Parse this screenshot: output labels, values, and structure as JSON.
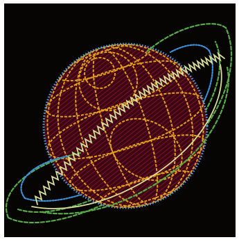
{
  "artwork": {
    "subject": "planet-with-rings",
    "palette": {
      "background": "#070504",
      "frame": "#ffffff",
      "sphere_fill": "#3a0712",
      "sphere_hatch": "#8e1430",
      "sphere_outline": "#4fa8e0",
      "grid_lines": "#f2b021",
      "ring_green": "#5aa94a",
      "ring_blue": "#3f8fd6",
      "ring_cream": "#d7dd9a"
    }
  }
}
